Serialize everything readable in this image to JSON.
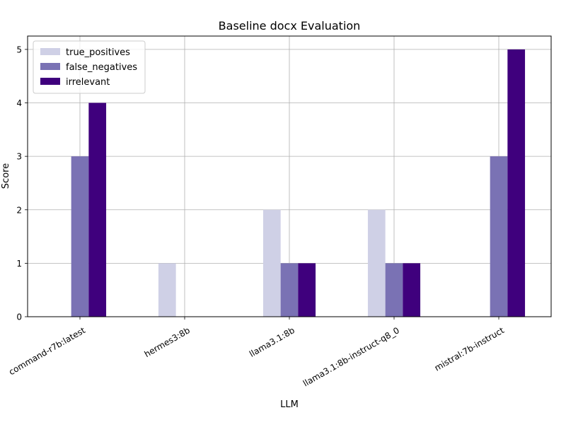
{
  "chart_data": {
    "type": "bar",
    "title": "Baseline docx Evaluation",
    "xlabel": "LLM",
    "ylabel": "Score",
    "categories": [
      "command-r7b:latest",
      "hermes3:8b",
      "llama3.1:8b",
      "llama3.1:8b-instruct-q8_0",
      "mistral:7b-instruct"
    ],
    "series": [
      {
        "name": "true_positives",
        "values": [
          0,
          1,
          2,
          2,
          0
        ],
        "color": "#cfd0e6"
      },
      {
        "name": "false_negatives",
        "values": [
          3,
          0,
          1,
          1,
          3
        ],
        "color": "#7a72b4"
      },
      {
        "name": "irrelevant",
        "values": [
          4,
          0,
          1,
          1,
          5
        ],
        "color": "#3f007d"
      }
    ],
    "ylim": [
      0,
      5.25
    ],
    "yticks": [
      "0",
      "1",
      "2",
      "3",
      "4",
      "5"
    ],
    "grid": true,
    "legend_position": "top-left"
  }
}
